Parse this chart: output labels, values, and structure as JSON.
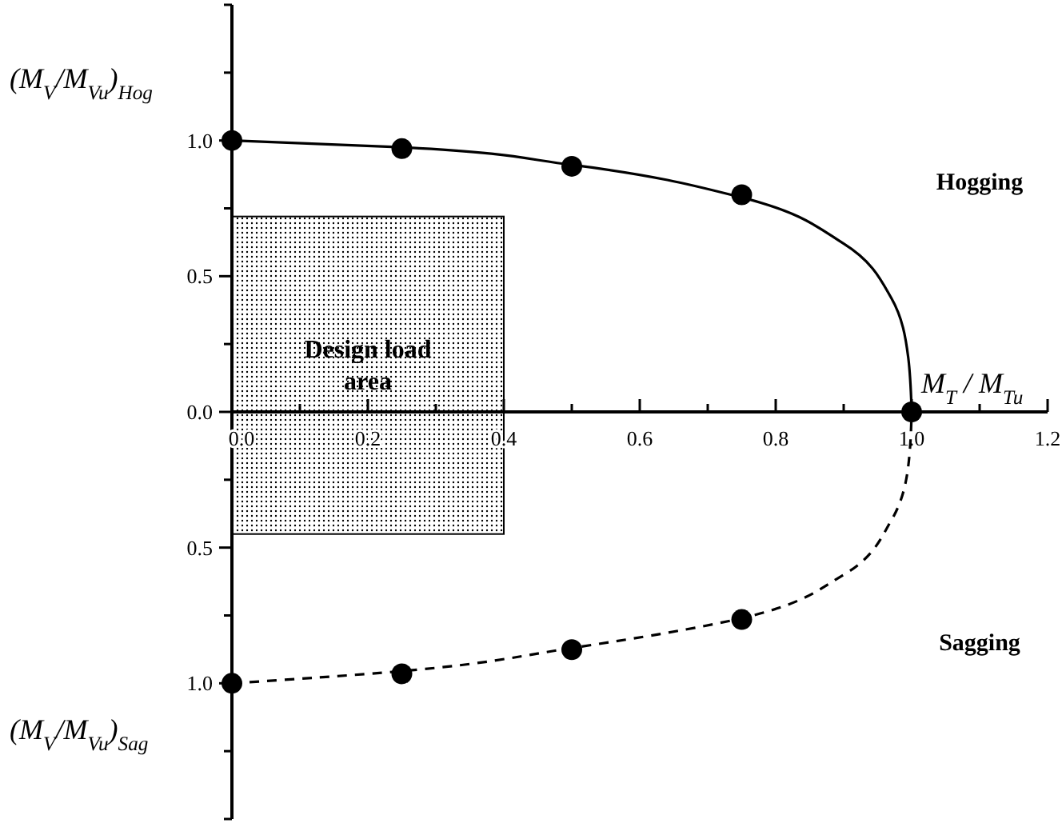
{
  "chart_data": {
    "type": "line",
    "xlabel": "M$_{T}$ / M$_{Tu}$",
    "ylabel": "(M$_{V}$/M$_{Vu}$)$_{Hog}$",
    "annotations": [
      "(M$_{V}$/M$_{Vu}$)$_{Sag}$",
      "Design load area",
      "Hogging",
      "Sagging"
    ],
    "xlim": [
      0,
      1.2
    ],
    "xticks": [
      {
        "value": 0,
        "label": "0.0"
      },
      {
        "value": 0.1,
        "label": null
      },
      {
        "value": 0.2,
        "label": "0.2"
      },
      {
        "value": 0.3,
        "label": null
      },
      {
        "value": 0.4,
        "label": "0.4"
      },
      {
        "value": 0.5,
        "label": null
      },
      {
        "value": 0.6,
        "label": "0.6"
      },
      {
        "value": 0.7,
        "label": null
      },
      {
        "value": 0.8,
        "label": "0.8"
      },
      {
        "value": 0.9,
        "label": null
      },
      {
        "value": 1.0,
        "label": "1.0"
      },
      {
        "value": 1.1,
        "label": null
      },
      {
        "value": 1.2,
        "label": "1.2"
      }
    ],
    "ylim": [
      -1.5,
      1.5
    ],
    "yticks": [
      {
        "value": 1.5,
        "label": null
      },
      {
        "value": 1.25,
        "label": null
      },
      {
        "value": 1.0,
        "label": "1.0"
      },
      {
        "value": 0.75,
        "label": null
      },
      {
        "value": 0.5,
        "label": "0.5"
      },
      {
        "value": 0.25,
        "label": null
      },
      {
        "value": 0,
        "label": "0.0"
      },
      {
        "value": -0.25,
        "label": null
      },
      {
        "value": -0.5,
        "label": "0.5"
      },
      {
        "value": -0.75,
        "label": null
      },
      {
        "value": -1.0,
        "label": "1.0"
      },
      {
        "value": -1.25,
        "label": null
      },
      {
        "value": -1.5,
        "label": null
      }
    ],
    "grid": false,
    "series": [
      {
        "type": "bar",
        "color": "#000000",
        "x": [
          0.2
        ],
        "base": [
          -0.45
        ],
        "values": [
          1.17
        ]
      },
      {
        "color": "#000000",
        "line_style": "solid",
        "marker": "none",
        "x": [
          0,
          0.25,
          0.5,
          0.75,
          0.9,
          0.97,
          0.995,
          1.0
        ],
        "values": [
          1,
          0.975,
          0.91,
          0.79,
          0.62,
          0.42,
          0.2,
          0
        ]
      },
      {
        "color": "#000000",
        "line_style": "dashed",
        "marker": "none",
        "x": [
          0,
          0.25,
          0.5,
          0.75,
          0.9,
          0.97,
          0.995,
          1.0
        ],
        "values": [
          -1,
          -0.955,
          -0.87,
          -0.76,
          -0.6,
          -0.4,
          -0.2,
          0
        ]
      },
      {
        "type": "scatter",
        "color": "#000000",
        "marker": "circle",
        "x": [
          0,
          0.25,
          0.5,
          0.75,
          1.0
        ],
        "values": [
          1.0,
          0.97,
          0.905,
          0.8,
          0
        ]
      },
      {
        "type": "scatter",
        "color": "#000000",
        "marker": "circle",
        "x": [
          0,
          0.25,
          0.5,
          0.75
        ],
        "values": [
          -1.0,
          -0.965,
          -0.876,
          -0.765
        ]
      }
    ]
  }
}
